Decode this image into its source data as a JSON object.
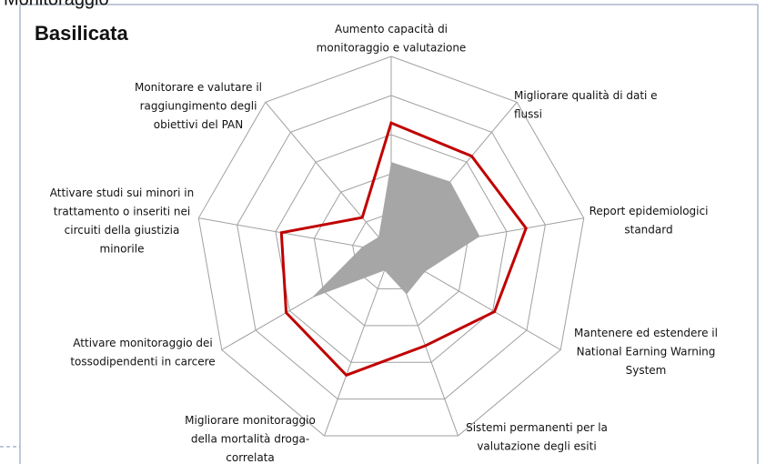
{
  "heading": "Monitoraggio",
  "chart_data": {
    "type": "radar",
    "title": "Basilicata",
    "categories": [
      "Aumento capacità di\nmonitoraggio e valutazione",
      "Migliorare qualità di dati e\nflussi",
      "Report epidemiologici\nstandard",
      "Mantenere ed estendere il\nNational Earning Warning\nSystem",
      "Sistemi permanenti per la\nvalutazione degli esiti",
      "Migliorare monitoraggio\ndella mortalità droga-\ncorrelata",
      "Attivare monitoraggio dei\ntossodipendenti in carcere",
      "Attivare studi sui minori in\ntrattamento o inseriti nei\ncircuiti della giustizia\nminorile",
      "Monitorare e valutare il\nraggiungimento degli\nobiettivi del PAN"
    ],
    "series": [
      {
        "color": "#a6a6a6",
        "fill": true,
        "values": [
          46,
          47,
          46,
          20,
          23,
          10,
          47,
          15,
          10
        ]
      },
      {
        "color": "#c00000",
        "fill": false,
        "values": [
          66,
          64,
          70,
          61,
          51,
          67,
          62,
          57,
          23
        ]
      }
    ],
    "rlim": [
      0,
      100
    ],
    "rticks": [
      20,
      40,
      60,
      80,
      100
    ],
    "grid": true
  }
}
